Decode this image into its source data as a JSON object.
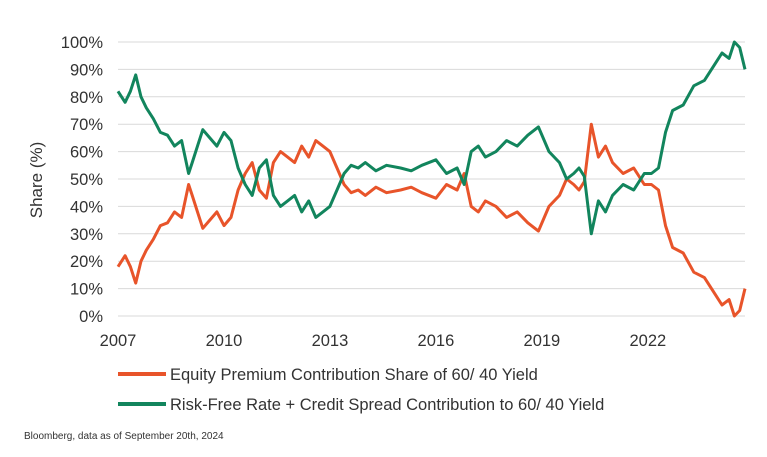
{
  "chart_data": {
    "type": "line",
    "ylabel": "Share (%)",
    "xlabel": "",
    "ylim": [
      0,
      100
    ],
    "yticks": [
      "0%",
      "10%",
      "20%",
      "30%",
      "40%",
      "50%",
      "60%",
      "70%",
      "80%",
      "90%",
      "100%"
    ],
    "xticks": [
      "2007",
      "2010",
      "2013",
      "2016",
      "2019",
      "2022"
    ],
    "xlim": [
      2007.0,
      2024.75
    ],
    "grid": "horizontal",
    "legend_placement": "bottom",
    "series": [
      {
        "name": "Equity Premium Contribution Share of 60/ 40 Yield",
        "color": "#e8542a",
        "x": [
          2007.0,
          2007.2,
          2007.35,
          2007.5,
          2007.65,
          2007.8,
          2008.0,
          2008.2,
          2008.4,
          2008.6,
          2008.8,
          2009.0,
          2009.1,
          2009.25,
          2009.4,
          2009.6,
          2009.8,
          2010.0,
          2010.2,
          2010.4,
          2010.6,
          2010.8,
          2011.0,
          2011.2,
          2011.4,
          2011.6,
          2011.8,
          2012.0,
          2012.2,
          2012.4,
          2012.6,
          2012.8,
          2013.0,
          2013.2,
          2013.4,
          2013.6,
          2013.8,
          2014.0,
          2014.3,
          2014.6,
          2015.0,
          2015.3,
          2015.6,
          2016.0,
          2016.3,
          2016.6,
          2016.8,
          2017.0,
          2017.2,
          2017.4,
          2017.7,
          2018.0,
          2018.3,
          2018.6,
          2018.9,
          2019.2,
          2019.5,
          2019.7,
          2019.9,
          2020.05,
          2020.2,
          2020.4,
          2020.6,
          2020.8,
          2021.0,
          2021.3,
          2021.6,
          2021.9,
          2022.1,
          2022.3,
          2022.5,
          2022.7,
          2023.0,
          2023.3,
          2023.6,
          2023.9,
          2024.1,
          2024.3,
          2024.45,
          2024.6,
          2024.75
        ],
        "values": [
          18,
          22,
          18,
          12,
          20,
          24,
          28,
          33,
          34,
          38,
          36,
          48,
          44,
          38,
          32,
          35,
          38,
          33,
          36,
          46,
          52,
          56,
          46,
          43,
          56,
          60,
          58,
          56,
          62,
          58,
          64,
          62,
          60,
          54,
          48,
          45,
          46,
          44,
          47,
          45,
          46,
          47,
          45,
          43,
          48,
          46,
          52,
          40,
          38,
          42,
          40,
          36,
          38,
          34,
          31,
          40,
          44,
          50,
          48,
          46,
          49,
          70,
          58,
          62,
          56,
          52,
          54,
          48,
          48,
          46,
          33,
          25,
          23,
          16,
          14,
          8,
          4,
          6,
          0,
          2,
          10
        ]
      },
      {
        "name": "Risk-Free Rate + Credit Spread Contribution to 60/ 40 Yield",
        "color": "#12855d",
        "x": [
          2007.0,
          2007.2,
          2007.35,
          2007.5,
          2007.65,
          2007.8,
          2008.0,
          2008.2,
          2008.4,
          2008.6,
          2008.8,
          2009.0,
          2009.1,
          2009.25,
          2009.4,
          2009.6,
          2009.8,
          2010.0,
          2010.2,
          2010.4,
          2010.6,
          2010.8,
          2011.0,
          2011.2,
          2011.4,
          2011.6,
          2011.8,
          2012.0,
          2012.2,
          2012.4,
          2012.6,
          2012.8,
          2013.0,
          2013.2,
          2013.4,
          2013.6,
          2013.8,
          2014.0,
          2014.3,
          2014.6,
          2015.0,
          2015.3,
          2015.6,
          2016.0,
          2016.3,
          2016.6,
          2016.8,
          2017.0,
          2017.2,
          2017.4,
          2017.7,
          2018.0,
          2018.3,
          2018.6,
          2018.9,
          2019.2,
          2019.5,
          2019.7,
          2019.9,
          2020.05,
          2020.2,
          2020.4,
          2020.6,
          2020.8,
          2021.0,
          2021.3,
          2021.6,
          2021.9,
          2022.1,
          2022.3,
          2022.5,
          2022.7,
          2023.0,
          2023.3,
          2023.6,
          2023.9,
          2024.1,
          2024.3,
          2024.45,
          2024.6,
          2024.75
        ],
        "values": [
          82,
          78,
          82,
          88,
          80,
          76,
          72,
          67,
          66,
          62,
          64,
          52,
          56,
          62,
          68,
          65,
          62,
          67,
          64,
          54,
          48,
          44,
          54,
          57,
          44,
          40,
          42,
          44,
          38,
          42,
          36,
          38,
          40,
          46,
          52,
          55,
          54,
          56,
          53,
          55,
          54,
          53,
          55,
          57,
          52,
          54,
          48,
          60,
          62,
          58,
          60,
          64,
          62,
          66,
          69,
          60,
          56,
          50,
          52,
          54,
          51,
          30,
          42,
          38,
          44,
          48,
          46,
          52,
          52,
          54,
          67,
          75,
          77,
          84,
          86,
          92,
          96,
          94,
          100,
          98,
          90
        ]
      }
    ]
  },
  "legend": {
    "item1": "Equity Premium Contribution Share of 60/ 40 Yield",
    "item2": "Risk-Free Rate + Credit Spread Contribution to 60/ 40 Yield"
  },
  "source": "Bloomberg, data as of September 20th, 2024"
}
